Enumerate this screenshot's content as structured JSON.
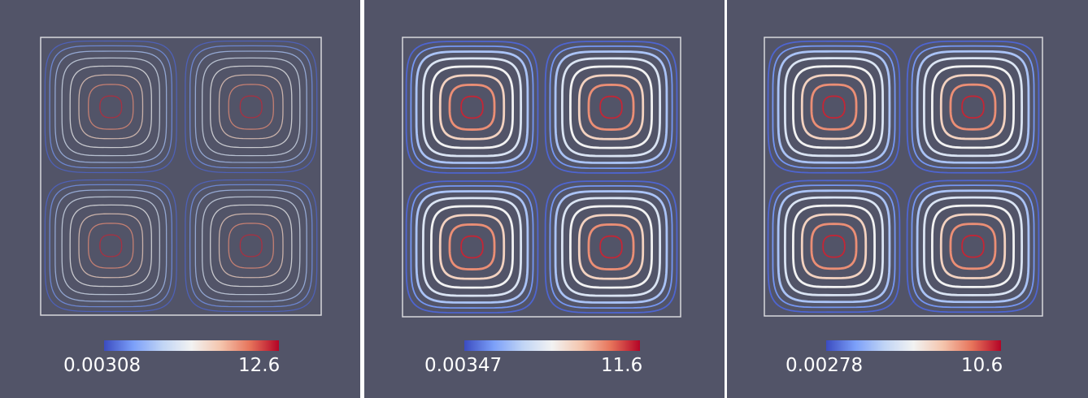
{
  "panels": [
    {
      "colorbar": {
        "min_label": "0.00308",
        "max_label": "12.6"
      },
      "intensity": 0.55
    },
    {
      "colorbar": {
        "min_label": "0.00347",
        "max_label": "11.6"
      },
      "intensity": 1.0
    },
    {
      "colorbar": {
        "min_label": "0.00278",
        "max_label": "10.6"
      },
      "intensity": 1.0
    }
  ],
  "colormap": [
    "#3b4cc0",
    "#7b9ff9",
    "#c0d4f5",
    "#f2f2f2",
    "#f4c5ad",
    "#e7745b",
    "#b40426"
  ],
  "background_color": "#525468",
  "frame_color": "#d8d8dc"
}
